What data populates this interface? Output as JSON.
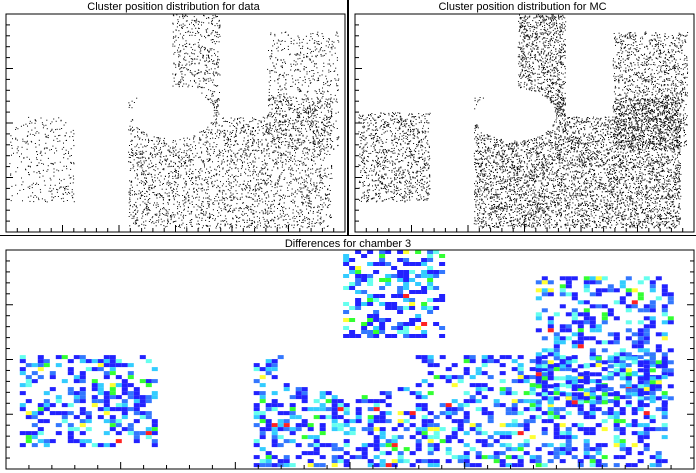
{
  "chart_data": [
    {
      "type": "scatter",
      "title": "Cluster position distribution for data",
      "xlabel": "",
      "ylabel": "",
      "xlim": [
        0,
        100
      ],
      "ylim": [
        0,
        100
      ],
      "grid": false,
      "marker_color": "#000000",
      "density": 0.45,
      "regions": [
        {
          "name": "left block",
          "x": [
            1,
            20
          ],
          "y": [
            14,
            53
          ],
          "density": 0.25
        },
        {
          "name": "center block",
          "x": [
            36,
            96
          ],
          "y": [
            2,
            62
          ],
          "density": 0.55
        },
        {
          "name": "upper arm",
          "x": [
            49,
            63
          ],
          "y": [
            53,
            100
          ],
          "density": 0.5
        },
        {
          "name": "right arc",
          "x": [
            76,
            98
          ],
          "y": [
            38,
            92
          ],
          "density": 0.35
        }
      ],
      "holes": [
        {
          "shape": "circle",
          "cx": 49,
          "cy": 55,
          "r": 12
        },
        {
          "shape": "rect",
          "x": [
            63,
            77
          ],
          "y": [
            53,
            100
          ]
        }
      ]
    },
    {
      "type": "scatter",
      "title": "Cluster position distribution for MC",
      "xlabel": "",
      "ylabel": "",
      "xlim": [
        0,
        100
      ],
      "ylim": [
        0,
        100
      ],
      "grid": false,
      "marker_color": "#000000",
      "density": 0.9,
      "regions": [
        {
          "name": "left block",
          "x": [
            1,
            22
          ],
          "y": [
            14,
            55
          ],
          "density": 0.7
        },
        {
          "name": "center block",
          "x": [
            35,
            96
          ],
          "y": [
            2,
            62
          ],
          "density": 1.0
        },
        {
          "name": "upper arm",
          "x": [
            48,
            62
          ],
          "y": [
            53,
            100
          ],
          "density": 1.0
        },
        {
          "name": "right arc",
          "x": [
            76,
            98
          ],
          "y": [
            38,
            92
          ],
          "density": 0.7
        }
      ],
      "holes": [
        {
          "shape": "circle",
          "cx": 47,
          "cy": 54,
          "r": 12
        },
        {
          "shape": "rect",
          "x": [
            62,
            76
          ],
          "y": [
            53,
            100
          ]
        }
      ]
    },
    {
      "type": "heatmap",
      "title": "Differences for chamber 3",
      "xlabel": "",
      "ylabel": "",
      "xlim": [
        0,
        100
      ],
      "ylim": [
        0,
        100
      ],
      "grid": false,
      "palette": [
        "#2222ff",
        "#3377ff",
        "#33ccff",
        "#66ffee",
        "#33ff33",
        "#ffff33",
        "#ff2222"
      ],
      "regions": [
        {
          "name": "left block",
          "x": [
            2,
            22
          ],
          "y": [
            10,
            52
          ]
        },
        {
          "name": "upper arm",
          "x": [
            49,
            63
          ],
          "y": [
            60,
            100
          ]
        },
        {
          "name": "center block",
          "x": [
            36,
            96
          ],
          "y": [
            2,
            52
          ]
        },
        {
          "name": "right arc",
          "x": [
            77,
            97
          ],
          "y": [
            30,
            88
          ]
        }
      ],
      "holes": [
        {
          "shape": "circle",
          "cx": 50,
          "cy": 46,
          "r": 11
        }
      ]
    }
  ]
}
